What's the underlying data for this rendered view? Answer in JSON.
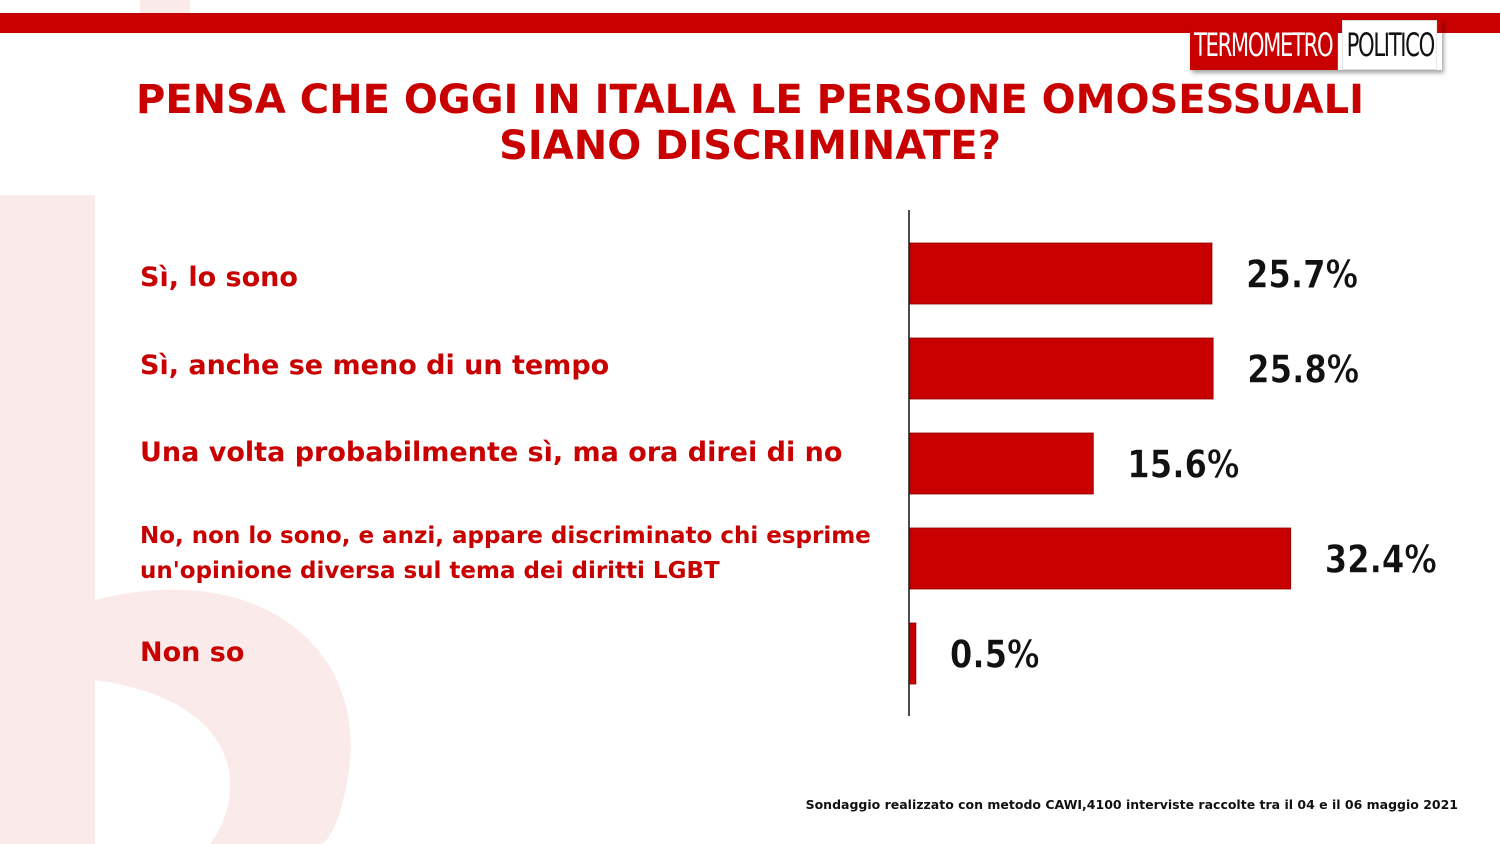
{
  "logo": {
    "part1": "TERMOMETRO",
    "part2": "POLITICO"
  },
  "title": {
    "line1": "PENSA CHE OGGI IN ITALIA LE PERSONE OMOSESSUALI",
    "line2": "SIANO DISCRIMINATE?"
  },
  "colors": {
    "accent": "#c90000",
    "watermark": "#fbeaea",
    "axis": "#111111"
  },
  "chart_data": {
    "type": "bar",
    "orientation": "horizontal",
    "categories": [
      "Sì, lo sono",
      "Sì, anche se meno di un tempo",
      "Una volta probabilmente sì, ma ora direi di no",
      "No, non lo sono, e anzi, appare discriminato chi esprime un'opinione diversa sul tema dei diritti LGBT",
      "Non so"
    ],
    "category_lines": [
      [
        "Sì, lo sono"
      ],
      [
        "Sì, anche se meno di un tempo"
      ],
      [
        "Una volta probabilmente sì, ma ora direi di no"
      ],
      [
        "No, non lo sono, e anzi, appare discriminato chi esprime",
        "un'opinione diversa sul tema dei diritti LGBT"
      ],
      [
        "Non so"
      ]
    ],
    "values": [
      25.7,
      25.8,
      15.6,
      32.4,
      0.5
    ],
    "data_labels": [
      "25.7%",
      "25.8%",
      "15.6%",
      "32.4%",
      "0.5%"
    ],
    "unit": "%",
    "xlim": [
      0,
      40
    ],
    "grid": false,
    "legend": "none"
  },
  "footnote": "Sondaggio realizzato con metodo CAWI,4100 interviste raccolte tra il 04 e il 06 maggio 2021"
}
